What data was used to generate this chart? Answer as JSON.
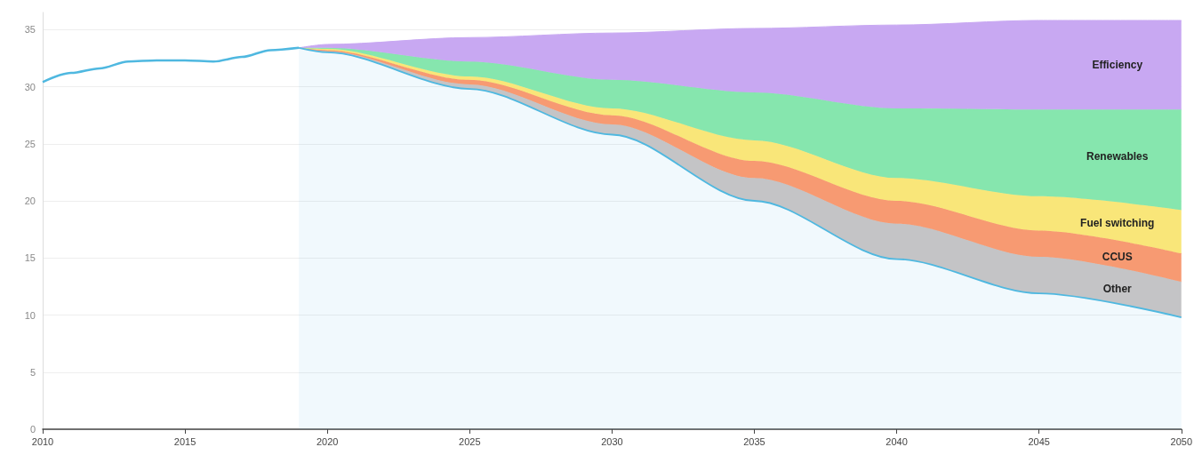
{
  "chart_data": {
    "type": "area",
    "stacked": true,
    "x": [
      2019,
      2020,
      2025,
      2030,
      2035,
      2040,
      2045,
      2050
    ],
    "xlim": [
      2010,
      2050
    ],
    "xticks": [
      2010,
      2015,
      2020,
      2025,
      2030,
      2035,
      2040,
      2045,
      2050
    ],
    "ylim": [
      0,
      36.5
    ],
    "yticks": [
      0,
      5,
      10,
      15,
      20,
      25,
      30,
      35
    ],
    "grid": "y",
    "legend": false,
    "marker": "none",
    "series": [
      {
        "type": "line",
        "color": "#4fb8e0",
        "x": [
          2010,
          2011,
          2012,
          2013,
          2014,
          2015,
          2016,
          2017,
          2018,
          2019
        ],
        "values": [
          30.4,
          31.2,
          31.6,
          32.2,
          32.3,
          32.3,
          32.2,
          32.6,
          33.2,
          33.4
        ]
      },
      {
        "type": "area",
        "color": "#4fb8e0",
        "values": [
          33.4,
          33.0,
          29.8,
          25.8,
          20.0,
          14.9,
          11.9,
          9.8
        ]
      },
      {
        "name": "Other",
        "color": "#c4c4c6",
        "values": [
          0,
          0.1,
          0.4,
          0.9,
          2.0,
          3.1,
          3.2,
          3.1
        ]
      },
      {
        "name": "CCUS",
        "color": "#f79a72",
        "values": [
          0,
          0.1,
          0.4,
          0.8,
          1.5,
          2.0,
          2.3,
          2.5
        ]
      },
      {
        "name": "Fuel switching",
        "color": "#f9e679",
        "values": [
          0,
          0.1,
          0.3,
          0.6,
          1.8,
          2.0,
          3.0,
          3.8
        ]
      },
      {
        "name": "Renewables",
        "color": "#86e6ae",
        "values": [
          0,
          0.1,
          1.3,
          2.5,
          4.2,
          6.1,
          7.6,
          8.8
        ]
      },
      {
        "name": "Efficiency",
        "color": "#c8a8f2",
        "values": [
          0,
          0.3,
          2.1,
          4.1,
          5.6,
          7.3,
          7.8,
          7.8
        ]
      }
    ]
  }
}
